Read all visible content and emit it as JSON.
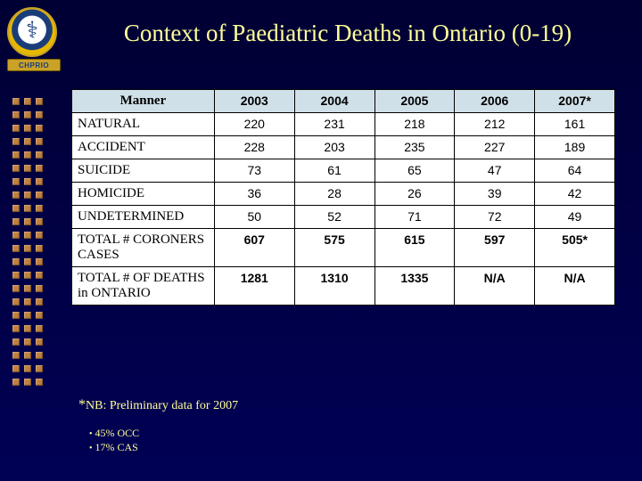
{
  "title": "Context of Paediatric Deaths in Ontario (0-19)",
  "logo": {
    "ribbon_text": "CHPRIO"
  },
  "table": {
    "header_manner": "Manner",
    "years": [
      "2003",
      "2004",
      "2005",
      "2006",
      "2007*"
    ],
    "rows": [
      {
        "label": "NATURAL",
        "vals": [
          "220",
          "231",
          "218",
          "212",
          "161"
        ],
        "bold": false
      },
      {
        "label": "ACCIDENT",
        "vals": [
          "228",
          "203",
          "235",
          "227",
          "189"
        ],
        "bold": false
      },
      {
        "label": "SUICIDE",
        "vals": [
          "73",
          "61",
          "65",
          "47",
          "64"
        ],
        "bold": false
      },
      {
        "label": "HOMICIDE",
        "vals": [
          "36",
          "28",
          "26",
          "39",
          "42"
        ],
        "bold": false
      },
      {
        "label": "UNDETERMINED",
        "vals": [
          "50",
          "52",
          "71",
          "72",
          "49"
        ],
        "bold": false
      },
      {
        "label": "TOTAL  # CORONERS CASES",
        "vals": [
          "607",
          "575",
          "615",
          "597",
          "505*"
        ],
        "bold": true
      },
      {
        "label": "TOTAL # OF DEATHS in ONTARIO",
        "vals": [
          "1281",
          "1310",
          "1335",
          "N/A",
          "N/A"
        ],
        "bold": true
      }
    ]
  },
  "footnote": {
    "star": "*",
    "text": "NB: Preliminary data for 2007"
  },
  "subnotes": [
    "45% OCC",
    "17% CAS"
  ],
  "style": {
    "title_color": "#ffff99",
    "header_bg": "#d0e0e8",
    "bullet_color": "#c08040",
    "bg_gradient_top": "#000033",
    "bg_gradient_bottom": "#000055"
  }
}
